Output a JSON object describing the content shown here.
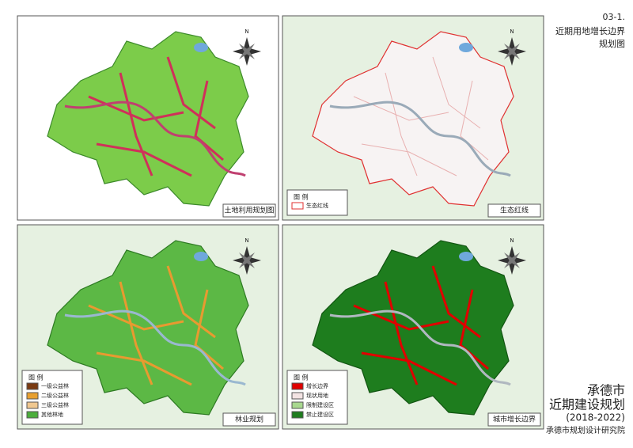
{
  "header": {
    "code": "03-1.",
    "title_lines": [
      "近期用地增长边界",
      "规划图"
    ]
  },
  "compass": "N",
  "panels": [
    {
      "label": "土地利用规划图"
    },
    {
      "label": "生态红线",
      "legend": {
        "title": "图 例",
        "items": [
          "生态红线"
        ]
      }
    },
    {
      "label": "林业规划",
      "legend": {
        "title": "图 例",
        "items": [
          "一级公益林",
          "二级公益林",
          "三级公益林",
          "其他林地"
        ]
      }
    },
    {
      "label": "城市增长边界",
      "legend": {
        "title": "图 例",
        "items": [
          "增长边界",
          "现状用地",
          "限制建设区",
          "禁止建设区"
        ]
      }
    }
  ],
  "footer": {
    "city": "承德市",
    "plan": "近期建设规划",
    "period": "(2018-2022)",
    "institute": "承德市规划设计研究院"
  }
}
